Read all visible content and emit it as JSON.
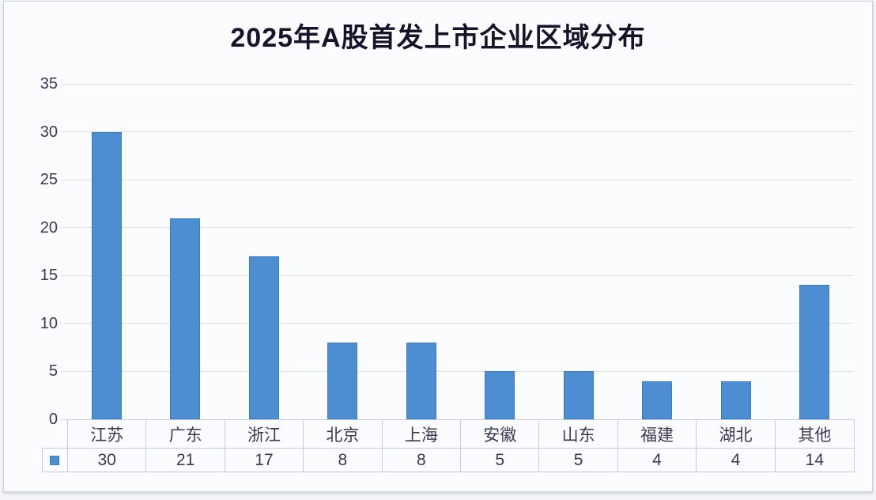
{
  "chart_data": {
    "type": "bar",
    "title": "2025年A股首发上市企业区域分布",
    "categories": [
      "江苏",
      "广东",
      "浙江",
      "北京",
      "上海",
      "安徽",
      "山东",
      "福建",
      "湖北",
      "其他"
    ],
    "values": [
      30,
      21,
      17,
      8,
      8,
      5,
      5,
      4,
      4,
      14
    ],
    "xlabel": "",
    "ylabel": "",
    "ylim": [
      0,
      35
    ],
    "yticks": [
      35,
      30,
      25,
      20,
      15,
      10,
      5,
      0
    ],
    "grid": true,
    "legend_position": "data-table-left",
    "data_table_shown": true,
    "bar_color": "#4d8dd1"
  },
  "styles": {
    "page_bg": "#f2f4f8",
    "card_bg": "#fbfcfe",
    "card_border": "#c9cfda",
    "title_color": "#15142b",
    "text_color": "#3d3852",
    "grid_color": "#dce0e8",
    "table_border": "#c6ccd7",
    "bar_fill": "#4d8dd1",
    "bar_edge": "#3c7cc4"
  }
}
